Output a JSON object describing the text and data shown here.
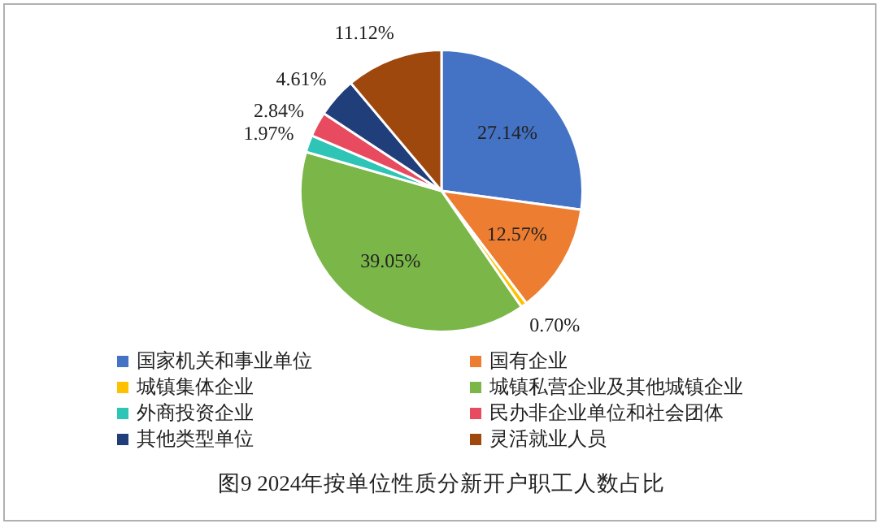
{
  "chart_data": {
    "type": "pie",
    "title": "图9 2024年按单位性质分新开户职工人数占比",
    "categories": [
      "国家机关和事业单位",
      "国有企业",
      "城镇集体企业",
      "城镇私营企业及其他城镇企业",
      "外商投资企业",
      "民办非企业单位和社会团体",
      "其他类型单位",
      "灵活就业人员"
    ],
    "values": [
      27.14,
      12.57,
      0.7,
      39.05,
      1.97,
      2.84,
      4.61,
      11.12
    ],
    "colors": [
      "#4472c4",
      "#ed7d31",
      "#ffc000",
      "#7ab648",
      "#2ec4b6",
      "#e84a5f",
      "#203f7a",
      "#9e480e"
    ],
    "value_labels": [
      "27.14%",
      "12.57%",
      "0.70%",
      "39.05%",
      "1.97%",
      "2.84%",
      "4.61%",
      "11.12%"
    ],
    "legend": "bottom"
  }
}
